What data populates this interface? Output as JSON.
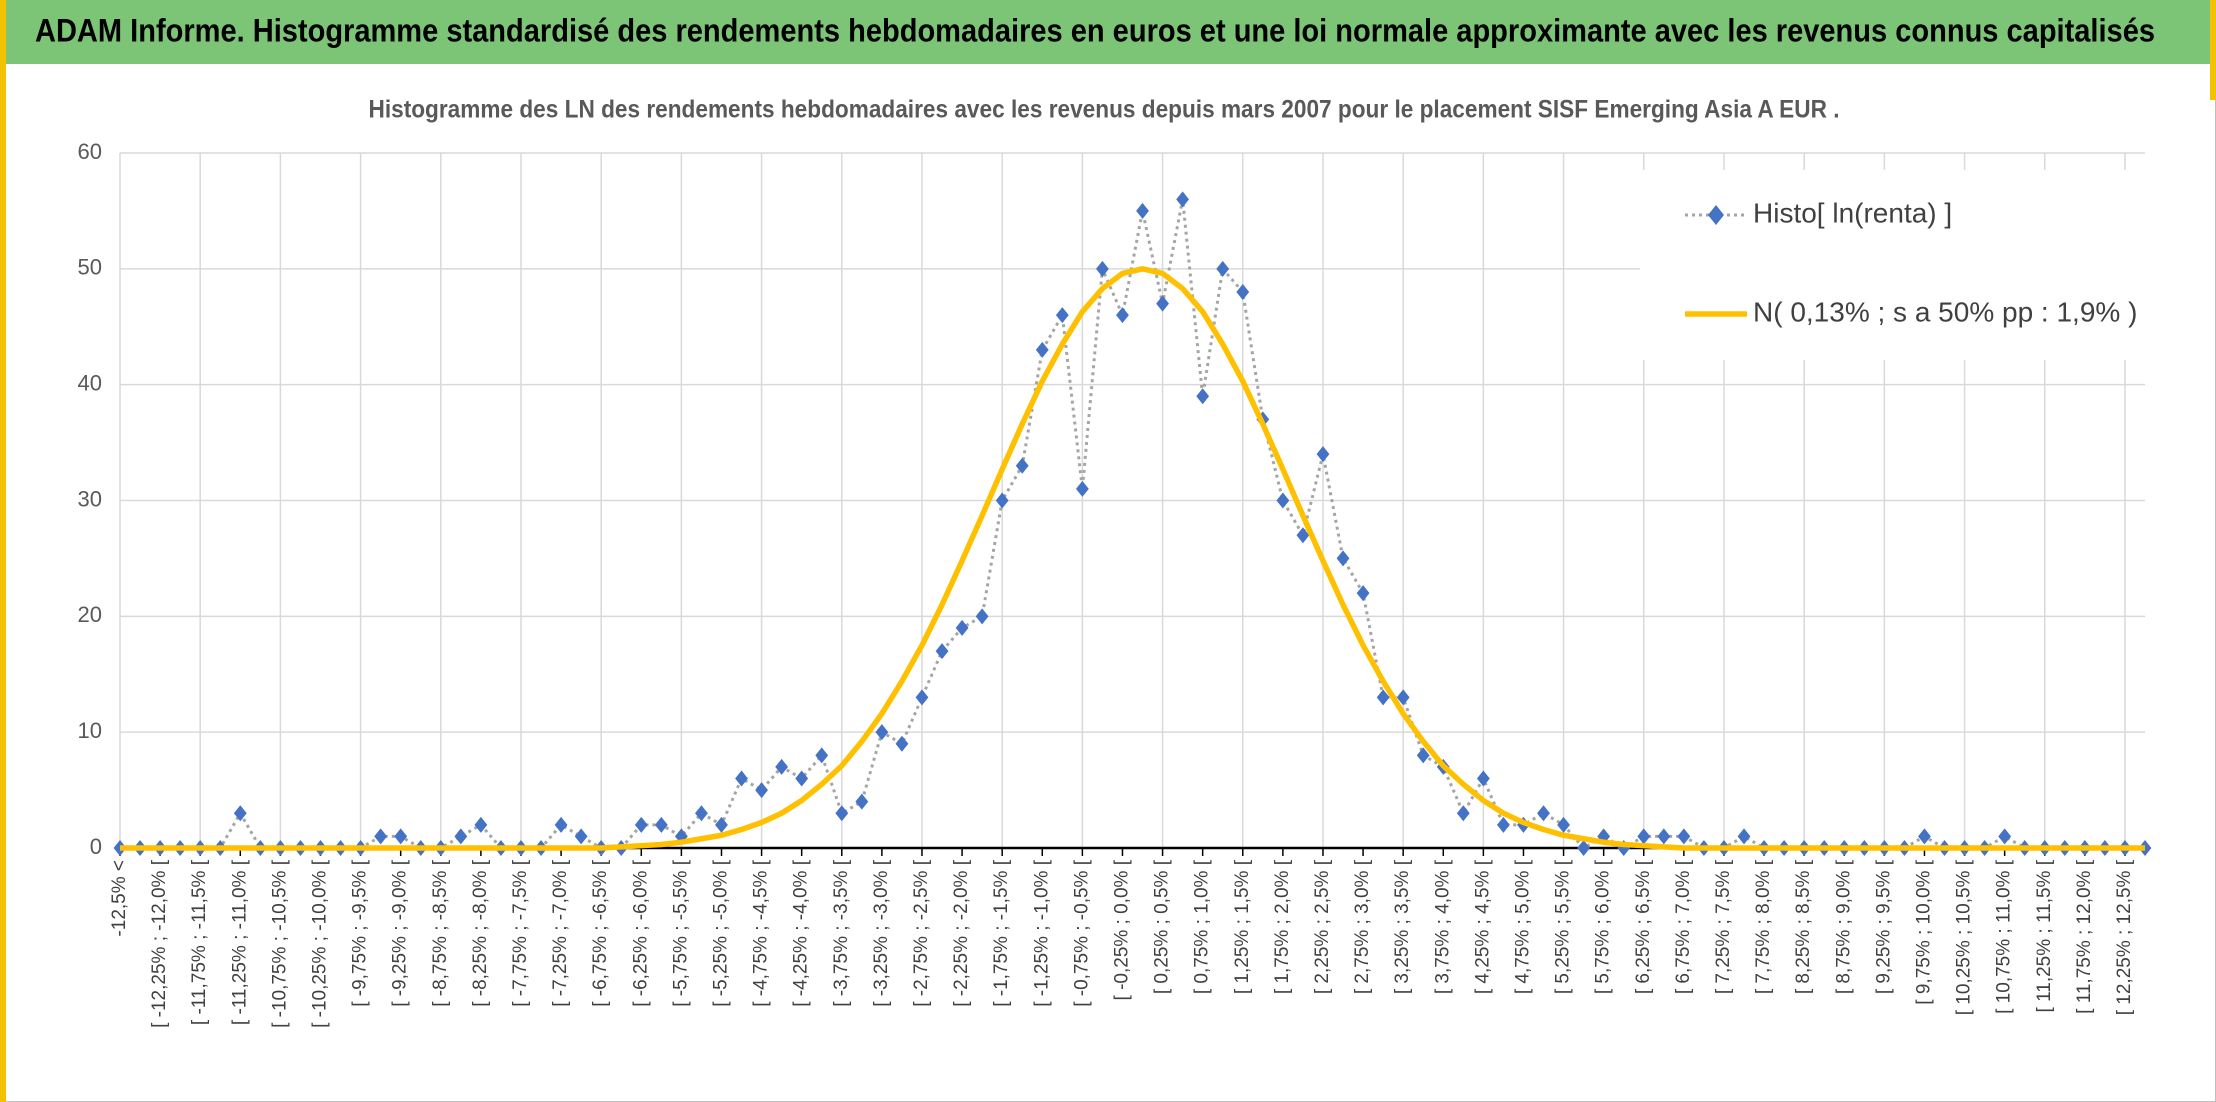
{
  "chart_data": {
    "type": "line",
    "title": "ADAM Informe. Histogramme standardisé des rendements hebdomadaires en euros et une loi normale approximante avec les revenus connus capitalisés",
    "subtitle": "Histogramme des LN des rendements hebdomadaires avec les revenus depuis mars 2007 pour le placement SISF Emerging Asia A EUR .",
    "categories": [
      "-12,5% <",
      null,
      "[ -12,25% ; -12,0% [",
      null,
      "[ -11,75% ; -11,5% [",
      null,
      "[ -11,25% ; -11,0% [",
      null,
      "[ -10,75% ; -10,5% [",
      null,
      "[ -10,25% ; -10,0% [",
      null,
      "[ -9,75% ; -9,5% [",
      null,
      "[ -9,25% ; -9,0% [",
      null,
      "[ -8,75% ; -8,5% [",
      null,
      "[ -8,25% ; -8,0% [",
      null,
      "[ -7,75% ; -7,5% [",
      null,
      "[ -7,25% ; -7,0% [",
      null,
      "[ -6,75% ; -6,5% [",
      null,
      "[ -6,25% ; -6,0% [",
      null,
      "[ -5,75% ; -5,5% [",
      null,
      "[ -5,25% ; -5,0% [",
      null,
      "[ -4,75% ; -4,5% [",
      null,
      "[ -4,25% ; -4,0% [",
      null,
      "[ -3,75% ; -3,5% [",
      null,
      "[ -3,25% ; -3,0% [",
      null,
      "[ -2,75% ; -2,5% [",
      null,
      "[ -2,25% ; -2,0% [",
      null,
      "[ -1,75% ; -1,5% [",
      null,
      "[ -1,25% ; -1,0% [",
      null,
      "[ -0,75% ; -0,5% [",
      null,
      "[ -0,25% ; 0,0% [",
      null,
      "[ 0,25% ; 0,5% [",
      null,
      "[ 0,75% ; 1,0% [",
      null,
      "[ 1,25% ; 1,5% [",
      null,
      "[ 1,75% ; 2,0% [",
      null,
      "[ 2,25% ; 2,5% [",
      null,
      "[ 2,75% ; 3,0% [",
      null,
      "[ 3,25% ; 3,5% [",
      null,
      "[ 3,75% ; 4,0% [",
      null,
      "[ 4,25% ; 4,5% [",
      null,
      "[ 4,75% ; 5,0% [",
      null,
      "[ 5,25% ; 5,5% [",
      null,
      "[ 5,75% ; 6,0% [",
      null,
      "[ 6,25% ; 6,5% [",
      null,
      "[ 6,75% ; 7,0% [",
      null,
      "[ 7,25% ; 7,5% [",
      null,
      "[ 7,75% ; 8,0% [",
      null,
      "[ 8,25% ; 8,5% [",
      null,
      "[ 8,75% ; 9,0% [",
      null,
      "[ 9,25% ; 9,5% [",
      null,
      "[ 9,75% ; 10,0% [",
      null,
      "[ 10,25% ; 10,5% [",
      null,
      "[ 10,75% ; 11,0% [",
      null,
      "[ 11,25% ; 11,5% [",
      null,
      "[ 11,75% ; 12,0% [",
      null,
      "[ 12,25% ; 12,5% [",
      null
    ],
    "series": [
      {
        "name": "Histo[ ln(renta) ]",
        "color": "#4472c4",
        "line_color": "#a5a5a5",
        "marker": "diamond",
        "line_style": "dotted",
        "values": [
          0,
          0,
          0,
          0,
          0,
          0,
          3,
          0,
          0,
          0,
          0,
          0,
          0,
          1,
          1,
          0,
          0,
          1,
          2,
          0,
          0,
          0,
          2,
          1,
          0,
          0,
          2,
          2,
          1,
          3,
          2,
          6,
          5,
          7,
          6,
          8,
          3,
          4,
          10,
          9,
          13,
          17,
          19,
          20,
          30,
          33,
          43,
          46,
          31,
          50,
          46,
          55,
          47,
          56,
          39,
          50,
          48,
          37,
          30,
          27,
          34,
          25,
          22,
          13,
          13,
          8,
          7,
          3,
          6,
          2,
          2,
          3,
          2,
          0,
          1,
          0,
          1,
          1,
          1,
          0,
          0,
          1,
          0,
          0,
          0,
          0,
          0,
          0,
          0,
          0,
          1,
          0,
          0,
          0,
          1,
          0,
          0,
          0,
          0,
          0,
          0,
          0
        ]
      },
      {
        "name": "N( 0,13% ; s a 50% pp : 1,9% )",
        "color": "#ffc000",
        "marker": "none",
        "line_style": "solid",
        "values": [
          0,
          0,
          0,
          0,
          0,
          0,
          0,
          0,
          0,
          0,
          0,
          0,
          0,
          0,
          0,
          0,
          0,
          0,
          0,
          0,
          0,
          0,
          0,
          0,
          0,
          0.1,
          0.2,
          0.3,
          0.5,
          0.8,
          1.1,
          1.6,
          2.2,
          3.0,
          4.1,
          5.5,
          7.1,
          9.2,
          11.6,
          14.4,
          17.5,
          21.0,
          24.8,
          28.7,
          32.7,
          36.6,
          40.3,
          43.5,
          46.3,
          48.3,
          49.6,
          50,
          49.6,
          48.3,
          46.3,
          43.5,
          40.3,
          36.6,
          32.7,
          28.7,
          24.8,
          21.0,
          17.5,
          14.4,
          11.6,
          9.2,
          7.1,
          5.5,
          4.1,
          3.0,
          2.2,
          1.6,
          1.1,
          0.8,
          0.5,
          0.3,
          0.2,
          0.1,
          0,
          0,
          0,
          0,
          0,
          0,
          0,
          0,
          0,
          0,
          0,
          0,
          0,
          0,
          0,
          0,
          0,
          0,
          0,
          0,
          0,
          0,
          0,
          0
        ]
      }
    ],
    "ylim": [
      0,
      60
    ],
    "yticks": [
      0,
      10,
      20,
      30,
      40,
      50,
      60
    ],
    "grid": true,
    "legend": "top-right"
  }
}
